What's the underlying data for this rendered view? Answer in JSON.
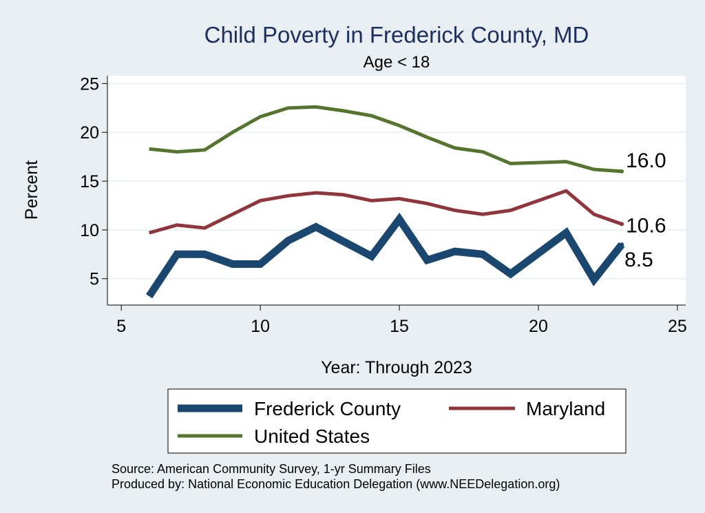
{
  "chart_data": {
    "type": "line",
    "title": "Child Poverty in Frederick County, MD",
    "subtitle": "Age < 18",
    "xlabel": "Year: Through 2023",
    "ylabel": "Percent",
    "xlim": [
      4.5,
      25.3
    ],
    "ylim": [
      2.3,
      25.8
    ],
    "xticks": [
      5,
      10,
      15,
      20,
      25
    ],
    "yticks": [
      5,
      10,
      15,
      20,
      25
    ],
    "grid": true,
    "legend_position": "bottom",
    "series": [
      {
        "name": "Frederick County",
        "color": "#1a476f",
        "x": [
          6,
          7,
          8,
          9,
          10,
          11,
          12,
          13,
          14,
          15,
          16,
          17,
          18,
          19,
          21,
          22,
          23
        ],
        "values": [
          3.2,
          7.5,
          7.5,
          6.5,
          6.5,
          8.9,
          10.3,
          8.8,
          7.3,
          11.1,
          6.9,
          7.8,
          7.5,
          5.5,
          9.7,
          4.9,
          8.5
        ],
        "end_label": "8.5"
      },
      {
        "name": "Maryland",
        "color": "#90353b",
        "x": [
          6,
          7,
          8,
          9,
          10,
          11,
          12,
          13,
          14,
          15,
          16,
          17,
          18,
          19,
          20,
          21,
          22,
          23
        ],
        "values": [
          9.7,
          10.5,
          10.2,
          11.6,
          13.0,
          13.5,
          13.8,
          13.6,
          13.0,
          13.2,
          12.7,
          12.0,
          11.6,
          12.0,
          13.0,
          14.0,
          11.6,
          10.6
        ],
        "end_label": "10.6"
      },
      {
        "name": "United States",
        "color": "#55752f",
        "x": [
          6,
          7,
          8,
          9,
          10,
          11,
          12,
          13,
          14,
          15,
          16,
          17,
          18,
          19,
          20,
          21,
          22,
          23
        ],
        "values": [
          18.3,
          18.0,
          18.2,
          20.0,
          21.6,
          22.5,
          22.6,
          22.2,
          21.7,
          20.7,
          19.5,
          18.4,
          18.0,
          16.8,
          16.9,
          17.0,
          16.2,
          16.0
        ],
        "end_label": "16.0"
      }
    ]
  },
  "footer": {
    "source": "Source: American Community Survey, 1-yr Summary Files",
    "produced_by": "Produced by: National Economic Education Delegation (www.NEEDelegation.org)"
  }
}
